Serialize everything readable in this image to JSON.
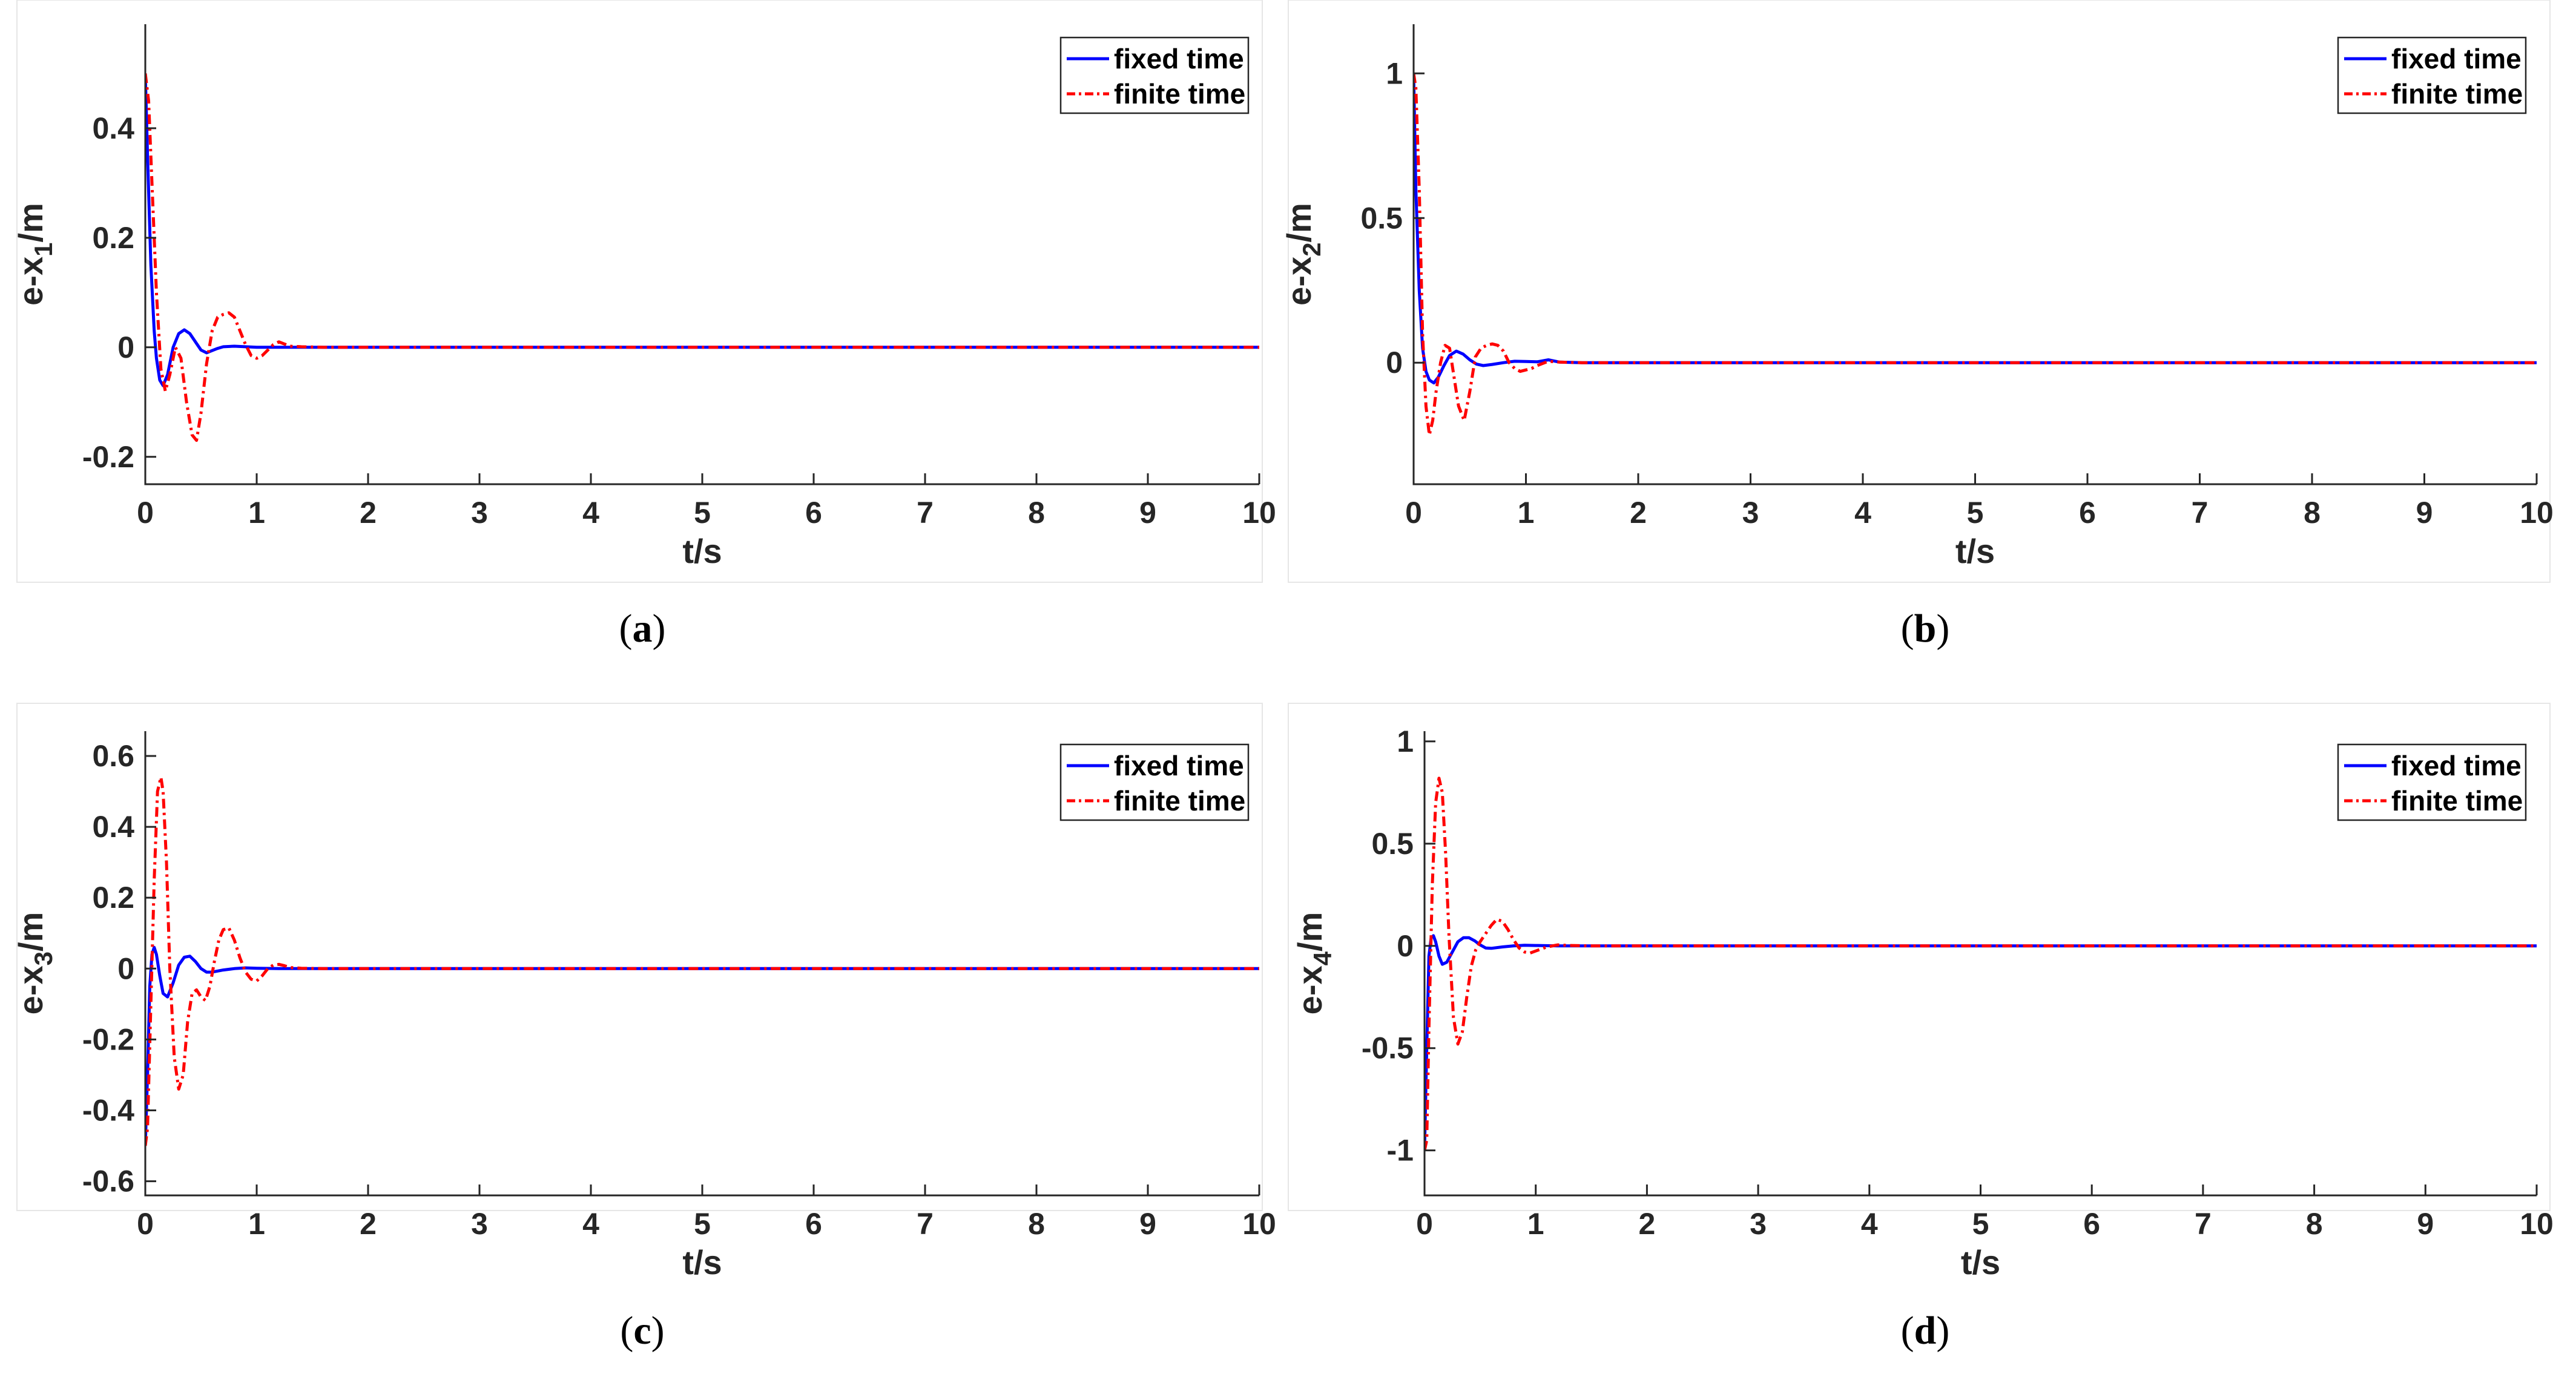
{
  "chart_data": [
    {
      "type": "line",
      "caption": "(a)",
      "caption_letter": "a",
      "xlabel": "t/s",
      "ylabel_base": "e-x",
      "ylabel_sub": "1",
      "ylabel_unit": "/m",
      "xlim": [
        0,
        10
      ],
      "ylim": [
        -0.25,
        0.59
      ],
      "xticks": [
        "0",
        "1",
        "2",
        "3",
        "4",
        "5",
        "6",
        "7",
        "8",
        "9",
        "10"
      ],
      "xtick_values": [
        0,
        1,
        2,
        3,
        4,
        5,
        6,
        7,
        8,
        9,
        10
      ],
      "yticks": [
        "-0.2",
        "0",
        "0.2",
        "0.4"
      ],
      "ytick_values": [
        -0.2,
        0,
        0.2,
        0.4
      ],
      "legend": "top-right",
      "grid": false,
      "series": [
        {
          "name": "fixed time",
          "color": "#0000ff",
          "style": "solid",
          "x": [
            0,
            0.02,
            0.05,
            0.08,
            0.1,
            0.13,
            0.16,
            0.2,
            0.25,
            0.3,
            0.35,
            0.4,
            0.45,
            0.5,
            0.55,
            0.6,
            0.65,
            0.7,
            0.8,
            0.9,
            1.0,
            1.1,
            1.3,
            1.6,
            2,
            3,
            4,
            5,
            6,
            7,
            8,
            9,
            10
          ],
          "y": [
            0.5,
            0.35,
            0.15,
            0.03,
            -0.02,
            -0.06,
            -0.07,
            -0.05,
            0.0,
            0.025,
            0.032,
            0.025,
            0.01,
            -0.005,
            -0.01,
            -0.006,
            -0.002,
            0.001,
            0.002,
            0.001,
            0,
            0,
            0,
            0,
            0,
            0,
            0,
            0,
            0,
            0,
            0,
            0,
            0
          ]
        },
        {
          "name": "finite time",
          "color": "#ff0000",
          "style": "dashdot",
          "x": [
            0,
            0.03,
            0.06,
            0.1,
            0.14,
            0.18,
            0.22,
            0.27,
            0.32,
            0.37,
            0.42,
            0.46,
            0.5,
            0.55,
            0.6,
            0.65,
            0.7,
            0.75,
            0.8,
            0.85,
            0.9,
            0.95,
            1.0,
            1.05,
            1.1,
            1.15,
            1.2,
            1.25,
            1.3,
            1.4,
            1.6,
            2,
            3,
            4,
            5,
            6,
            7,
            8,
            9,
            10
          ],
          "y": [
            0.5,
            0.45,
            0.3,
            0.1,
            -0.04,
            -0.08,
            -0.05,
            0.0,
            -0.02,
            -0.1,
            -0.16,
            -0.17,
            -0.12,
            -0.03,
            0.03,
            0.055,
            0.06,
            0.063,
            0.055,
            0.03,
            0.005,
            -0.015,
            -0.02,
            -0.015,
            -0.005,
            0.005,
            0.01,
            0.006,
            0.002,
            0.001,
            0,
            0,
            0,
            0,
            0,
            0,
            0,
            0,
            0,
            0
          ]
        }
      ]
    },
    {
      "type": "line",
      "caption": "(b)",
      "caption_letter": "b",
      "xlabel": "t/s",
      "ylabel_base": "e-x",
      "ylabel_sub": "2",
      "ylabel_unit": "/m",
      "xlim": [
        0,
        10
      ],
      "ylim": [
        -0.42,
        1.17
      ],
      "xticks": [
        "0",
        "1",
        "2",
        "3",
        "4",
        "5",
        "6",
        "7",
        "8",
        "9",
        "10"
      ],
      "xtick_values": [
        0,
        1,
        2,
        3,
        4,
        5,
        6,
        7,
        8,
        9,
        10
      ],
      "yticks": [
        "0",
        "0.5",
        "1"
      ],
      "ytick_values": [
        0,
        0.5,
        1
      ],
      "legend": "top-right",
      "grid": false,
      "series": [
        {
          "name": "fixed time",
          "color": "#0000ff",
          "style": "solid",
          "x": [
            0,
            0.02,
            0.05,
            0.08,
            0.11,
            0.14,
            0.18,
            0.22,
            0.27,
            0.32,
            0.38,
            0.44,
            0.5,
            0.56,
            0.62,
            0.7,
            0.8,
            0.9,
            1.0,
            1.1,
            1.2,
            1.3,
            1.5,
            2,
            3,
            4,
            5,
            6,
            7,
            8,
            9,
            10
          ],
          "y": [
            1.0,
            0.6,
            0.25,
            0.05,
            -0.03,
            -0.06,
            -0.07,
            -0.05,
            -0.01,
            0.025,
            0.04,
            0.03,
            0.01,
            -0.005,
            -0.01,
            -0.006,
            0.0,
            0.005,
            0.004,
            0.003,
            0.01,
            0.002,
            0,
            0,
            0,
            0,
            0,
            0,
            0,
            0,
            0,
            0
          ]
        },
        {
          "name": "finite time",
          "color": "#ff0000",
          "style": "dashdot",
          "x": [
            0,
            0.02,
            0.05,
            0.08,
            0.11,
            0.14,
            0.17,
            0.2,
            0.24,
            0.28,
            0.32,
            0.36,
            0.4,
            0.45,
            0.5,
            0.55,
            0.6,
            0.65,
            0.7,
            0.75,
            0.8,
            0.85,
            0.9,
            0.95,
            1.0,
            1.05,
            1.1,
            1.2,
            1.3,
            1.5,
            2,
            3,
            4,
            5,
            6,
            7,
            8,
            9,
            10
          ],
          "y": [
            1.0,
            0.95,
            0.6,
            0.1,
            -0.15,
            -0.25,
            -0.2,
            -0.1,
            0.0,
            0.06,
            0.05,
            -0.05,
            -0.15,
            -0.2,
            -0.1,
            0.02,
            0.05,
            0.06,
            0.065,
            0.06,
            0.04,
            0.0,
            -0.02,
            -0.03,
            -0.025,
            -0.02,
            -0.01,
            0.005,
            0.002,
            0,
            0,
            0,
            0,
            0,
            0,
            0,
            0,
            0,
            0
          ]
        }
      ]
    },
    {
      "type": "line",
      "caption": "(c)",
      "caption_letter": "c",
      "xlabel": "t/s",
      "ylabel_base": "e-x",
      "ylabel_sub": "3",
      "ylabel_unit": "/m",
      "xlim": [
        0,
        10
      ],
      "ylim": [
        -0.64,
        0.67
      ],
      "xticks": [
        "0",
        "1",
        "2",
        "3",
        "4",
        "5",
        "6",
        "7",
        "8",
        "9",
        "10"
      ],
      "xtick_values": [
        0,
        1,
        2,
        3,
        4,
        5,
        6,
        7,
        8,
        9,
        10
      ],
      "yticks": [
        "-0.6",
        "-0.4",
        "-0.2",
        "0",
        "0.2",
        "0.4",
        "0.6"
      ],
      "ytick_values": [
        -0.6,
        -0.4,
        -0.2,
        0,
        0.2,
        0.4,
        0.6
      ],
      "legend": "top-right",
      "grid": false,
      "series": [
        {
          "name": "fixed time",
          "color": "#0000ff",
          "style": "solid",
          "x": [
            0,
            0.02,
            0.04,
            0.06,
            0.08,
            0.1,
            0.13,
            0.16,
            0.2,
            0.25,
            0.3,
            0.35,
            0.4,
            0.45,
            0.5,
            0.55,
            0.6,
            0.7,
            0.8,
            0.9,
            1.0,
            1.2,
            1.5,
            2,
            3,
            4,
            5,
            6,
            7,
            8,
            9,
            10
          ],
          "y": [
            -0.5,
            -0.3,
            -0.05,
            0.04,
            0.06,
            0.04,
            -0.02,
            -0.07,
            -0.08,
            -0.04,
            0.01,
            0.032,
            0.035,
            0.02,
            0.0,
            -0.01,
            -0.01,
            -0.004,
            0.0,
            0.002,
            0.001,
            0,
            0,
            0,
            0,
            0,
            0,
            0,
            0,
            0,
            0,
            0
          ]
        },
        {
          "name": "finite time",
          "color": "#ff0000",
          "style": "dashdot",
          "x": [
            0,
            0.02,
            0.05,
            0.08,
            0.11,
            0.14,
            0.16,
            0.19,
            0.22,
            0.26,
            0.3,
            0.34,
            0.38,
            0.42,
            0.46,
            0.5,
            0.54,
            0.58,
            0.62,
            0.66,
            0.7,
            0.75,
            0.8,
            0.85,
            0.9,
            0.95,
            1.0,
            1.05,
            1.1,
            1.15,
            1.2,
            1.25,
            1.3,
            1.4,
            1.6,
            2,
            3,
            4,
            5,
            6,
            7,
            8,
            9,
            10
          ],
          "y": [
            -0.5,
            -0.45,
            -0.1,
            0.25,
            0.5,
            0.54,
            0.5,
            0.3,
            0.0,
            -0.25,
            -0.34,
            -0.3,
            -0.15,
            -0.07,
            -0.06,
            -0.08,
            -0.09,
            -0.05,
            0.02,
            0.08,
            0.11,
            0.115,
            0.08,
            0.03,
            -0.01,
            -0.03,
            -0.035,
            -0.02,
            0.0,
            0.01,
            0.012,
            0.008,
            0.003,
            0.001,
            0,
            0,
            0,
            0,
            0,
            0,
            0,
            0,
            0,
            0
          ]
        }
      ]
    },
    {
      "type": "line",
      "caption": "(d)",
      "caption_letter": "d",
      "xlabel": "t/s",
      "ylabel_base": "e-x",
      "ylabel_sub": "4",
      "ylabel_unit": "/m",
      "xlim": [
        0,
        10
      ],
      "ylim": [
        -1.22,
        1.05
      ],
      "xticks": [
        "0",
        "1",
        "2",
        "3",
        "4",
        "5",
        "6",
        "7",
        "8",
        "9",
        "10"
      ],
      "xtick_values": [
        0,
        1,
        2,
        3,
        4,
        5,
        6,
        7,
        8,
        9,
        10
      ],
      "yticks": [
        "-1",
        "-0.5",
        "0",
        "0.5",
        "1"
      ],
      "ytick_values": [
        -1,
        -0.5,
        0,
        0.5,
        1
      ],
      "legend": "top-right",
      "grid": false,
      "series": [
        {
          "name": "fixed time",
          "color": "#0000ff",
          "style": "solid",
          "x": [
            0,
            0.02,
            0.04,
            0.06,
            0.08,
            0.1,
            0.13,
            0.16,
            0.2,
            0.25,
            0.3,
            0.35,
            0.4,
            0.45,
            0.5,
            0.55,
            0.6,
            0.7,
            0.8,
            0.9,
            1.0,
            1.2,
            1.5,
            2,
            3,
            4,
            5,
            6,
            7,
            8,
            9,
            10
          ],
          "y": [
            -1.0,
            -0.5,
            -0.05,
            0.04,
            0.05,
            0.02,
            -0.05,
            -0.09,
            -0.08,
            -0.03,
            0.02,
            0.04,
            0.04,
            0.025,
            0.005,
            -0.01,
            -0.012,
            -0.005,
            0.0,
            0.003,
            0.002,
            0,
            0,
            0,
            0,
            0,
            0,
            0,
            0,
            0,
            0,
            0
          ]
        },
        {
          "name": "finite time",
          "color": "#ff0000",
          "style": "dashdot",
          "x": [
            0,
            0.02,
            0.04,
            0.07,
            0.1,
            0.13,
            0.16,
            0.19,
            0.22,
            0.26,
            0.3,
            0.34,
            0.38,
            0.42,
            0.46,
            0.5,
            0.55,
            0.6,
            0.65,
            0.7,
            0.75,
            0.8,
            0.85,
            0.9,
            0.95,
            1.0,
            1.05,
            1.1,
            1.2,
            1.3,
            1.5,
            2,
            3,
            4,
            5,
            6,
            7,
            8,
            9,
            10
          ],
          "y": [
            -1.0,
            -0.95,
            -0.4,
            0.3,
            0.7,
            0.82,
            0.75,
            0.45,
            0.05,
            -0.35,
            -0.48,
            -0.42,
            -0.25,
            -0.1,
            -0.02,
            0.02,
            0.06,
            0.1,
            0.13,
            0.12,
            0.08,
            0.03,
            -0.01,
            -0.03,
            -0.035,
            -0.025,
            -0.015,
            -0.005,
            0.005,
            0.002,
            0,
            0,
            0,
            0,
            0,
            0,
            0,
            0,
            0,
            0
          ]
        }
      ]
    }
  ]
}
